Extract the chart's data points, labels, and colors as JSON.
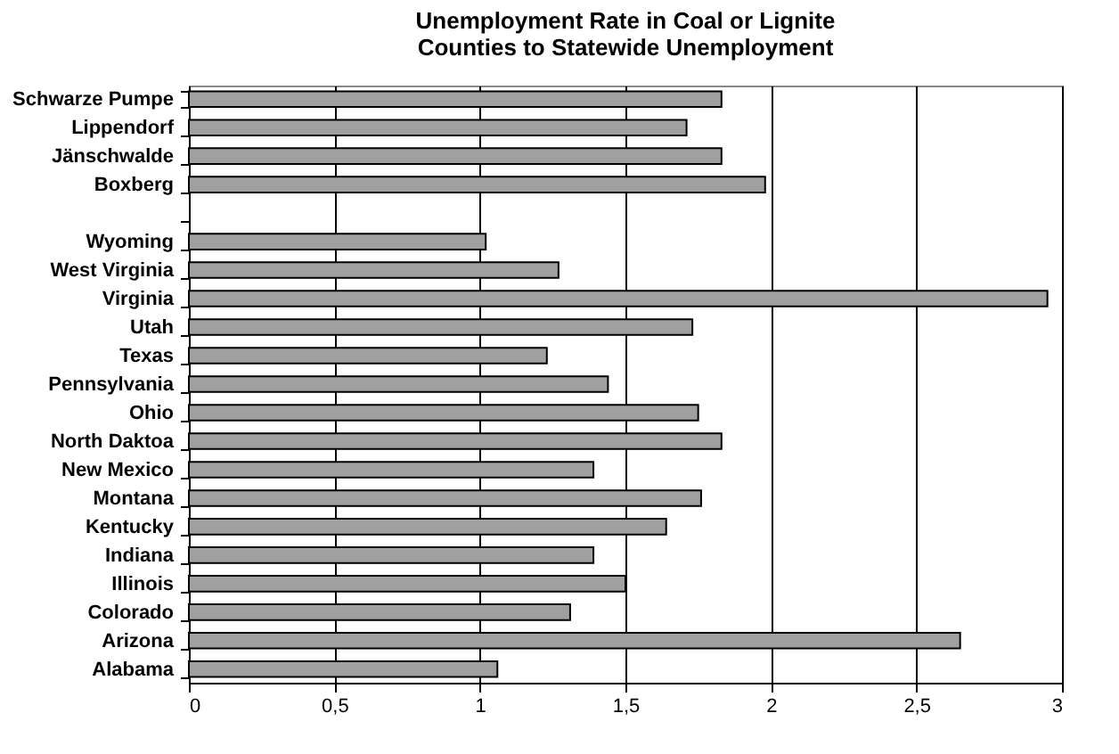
{
  "chart_data": {
    "type": "bar",
    "orientation": "horizontal",
    "title": "Unemployment Rate in Coal or Lignite Counties to Statewide Unemployment",
    "categories": [
      "Schwarze Pumpe",
      "Lippendorf",
      "Jänschwalde",
      "Boxberg",
      null,
      "Wyoming",
      "West Virginia",
      "Virginia",
      "Utah",
      "Texas",
      "Pennsylvania",
      "Ohio",
      "North Daktoa",
      "New Mexico",
      "Montana",
      "Kentucky",
      "Indiana",
      "Illinois",
      "Colorado",
      "Arizona",
      "Alabama"
    ],
    "values": [
      1.83,
      1.71,
      1.83,
      1.98,
      null,
      1.02,
      1.27,
      2.95,
      1.73,
      1.23,
      1.44,
      1.75,
      1.83,
      1.39,
      1.76,
      1.64,
      1.39,
      1.5,
      1.31,
      2.65,
      1.06
    ],
    "color": "#a0a0a0",
    "xlim": [
      0,
      3
    ],
    "xticks": [
      0,
      {
        "value": 0.5,
        "label": "0,5"
      },
      1,
      {
        "value": 1.5,
        "label": "1,5"
      },
      2,
      {
        "value": 2.5,
        "label": "2,5"
      },
      3
    ],
    "grid": "x"
  }
}
